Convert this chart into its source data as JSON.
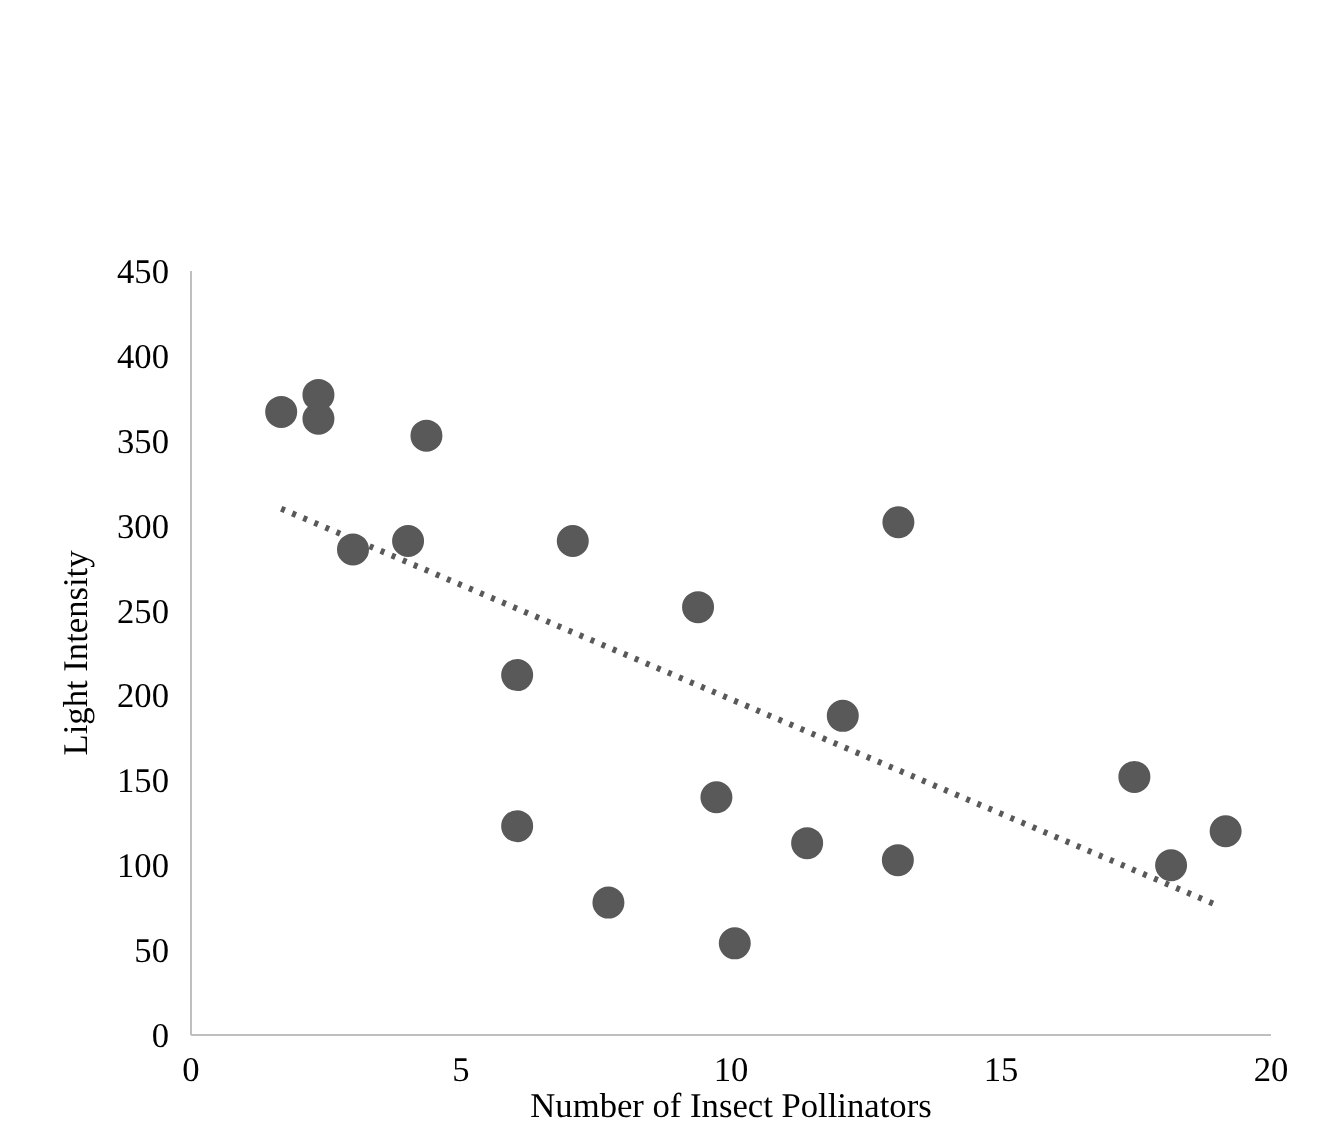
{
  "chart_data": {
    "type": "scatter",
    "xlabel": "Number of Insect Pollinators",
    "ylabel": "Light Intensity",
    "xlim": [
      0,
      20
    ],
    "xticks": [
      0,
      5,
      10,
      15,
      20
    ],
    "ylim": [
      0,
      450
    ],
    "yticks": [
      0,
      50,
      100,
      150,
      200,
      250,
      300,
      350,
      400,
      450
    ],
    "grid": false,
    "series": [
      {
        "marker": "circle",
        "color": "#595959",
        "x": [
          1.67,
          2.36,
          2.36,
          4.36,
          3.0,
          4.02,
          7.07,
          9.39,
          6.04,
          6.04,
          7.73,
          9.73,
          10.07,
          13.1,
          12.07,
          11.41,
          13.09,
          17.47,
          19.16,
          18.15
        ],
        "values": [
          367,
          377,
          363,
          353,
          286,
          291,
          291,
          252,
          212,
          123,
          78,
          140,
          54,
          302,
          188,
          113,
          103,
          152,
          120,
          100
        ]
      },
      {
        "type": "line",
        "color": "#595959",
        "line_style": "dotted",
        "x": [
          1.67,
          18.96
        ],
        "values": [
          310,
          77
        ]
      }
    ]
  }
}
